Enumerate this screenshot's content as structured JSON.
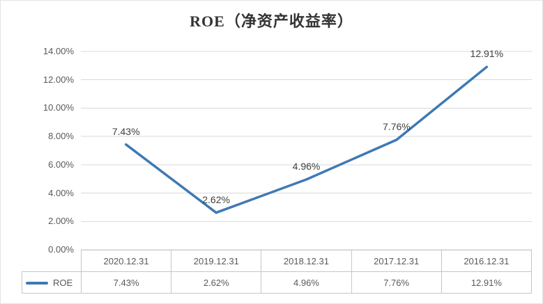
{
  "chart_data": {
    "type": "line",
    "title": "ROE（净资产收益率）",
    "categories": [
      "2020.12.31",
      "2019.12.31",
      "2018.12.31",
      "2017.12.31",
      "2016.12.31"
    ],
    "series": [
      {
        "name": "ROE",
        "values": [
          7.43,
          2.62,
          4.96,
          7.76,
          12.91
        ]
      }
    ],
    "value_labels": [
      "7.43%",
      "2.62%",
      "4.96%",
      "7.76%",
      "12.91%"
    ],
    "ylim": [
      0,
      14
    ],
    "ytick_step": 2,
    "ytick_labels": [
      "0.00%",
      "2.00%",
      "4.00%",
      "6.00%",
      "8.00%",
      "10.00%",
      "12.00%",
      "14.00%"
    ],
    "grid": true,
    "legend_position": "bottom-table",
    "line_color": "#3E79B4",
    "grid_color": "#D9D9D9",
    "table_border_color": "#C6C6C6",
    "title_color": "#333333",
    "text_color": "#595959"
  }
}
